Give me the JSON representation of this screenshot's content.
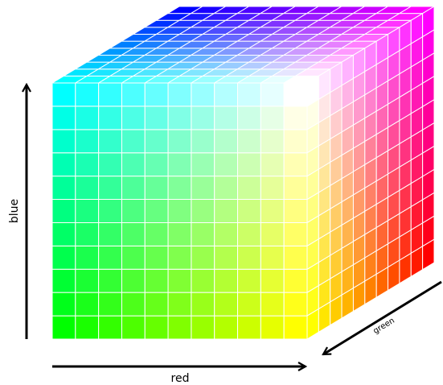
{
  "axes": {
    "blue": "blue",
    "red": "red",
    "green": "green"
  }
}
